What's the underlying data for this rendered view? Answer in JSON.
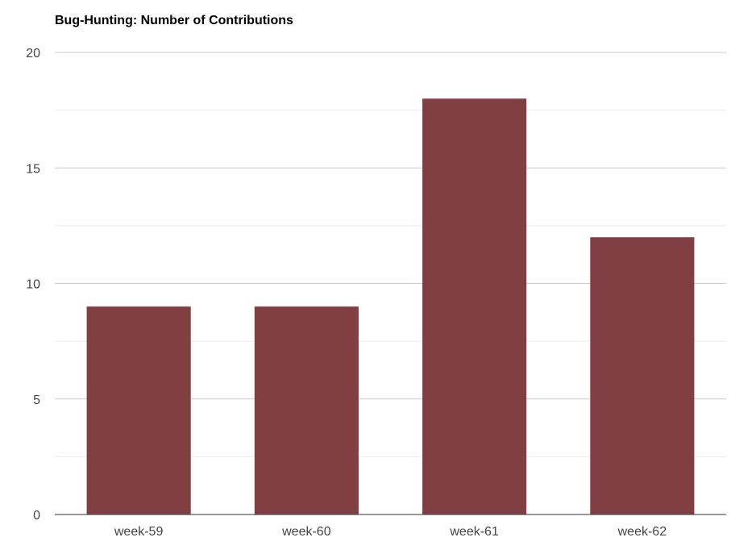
{
  "chart_data": {
    "type": "bar",
    "title": "Bug-Hunting: Number of Contributions",
    "categories": [
      "week-59",
      "week-60",
      "week-61",
      "week-62"
    ],
    "values": [
      9,
      9,
      18,
      12
    ],
    "ylim": [
      0,
      20
    ],
    "yticks": [
      0,
      5,
      10,
      15,
      20
    ],
    "xlabel": "",
    "ylabel": "",
    "grid": true,
    "legend": "none",
    "colors": {
      "bar": "#7f3f43",
      "major_grid": "#cccccc",
      "minor_grid": "#ebebeb",
      "axis": "#333333",
      "tick_label": "#444444"
    }
  }
}
